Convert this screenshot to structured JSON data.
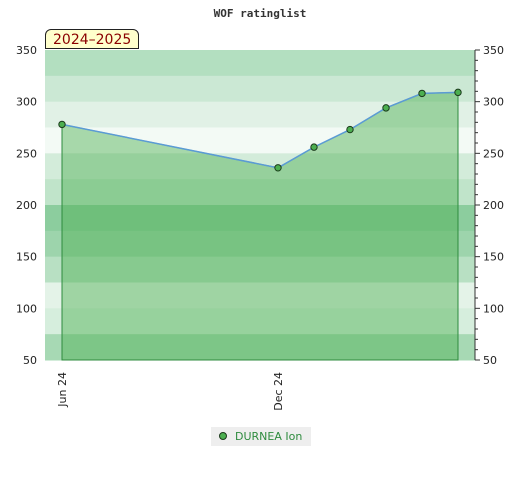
{
  "season_label": "2024–2025",
  "chart_data": {
    "type": "area",
    "title": "WOF ratinglist",
    "xlabel": "",
    "ylabel": "",
    "ylim": [
      50,
      350
    ],
    "y_ticks": [
      50,
      100,
      150,
      200,
      250,
      300,
      350
    ],
    "x_tick_labels": [
      "Jun 24",
      "Dec 24"
    ],
    "grid": true,
    "legend_position": "bottom",
    "series": [
      {
        "name": "DURNEA Ion",
        "color": "#4caf50",
        "line_color": "#5b9bd5",
        "points": [
          {
            "x": "2024-06",
            "y": 278
          },
          {
            "x": "2024-12",
            "y": 236
          },
          {
            "x": "2025-01",
            "y": 256
          },
          {
            "x": "2025-02",
            "y": 273
          },
          {
            "x": "2025-03",
            "y": 294
          },
          {
            "x": "2025-04",
            "y": 308
          },
          {
            "x": "2025-05",
            "y": 309
          }
        ]
      }
    ]
  }
}
